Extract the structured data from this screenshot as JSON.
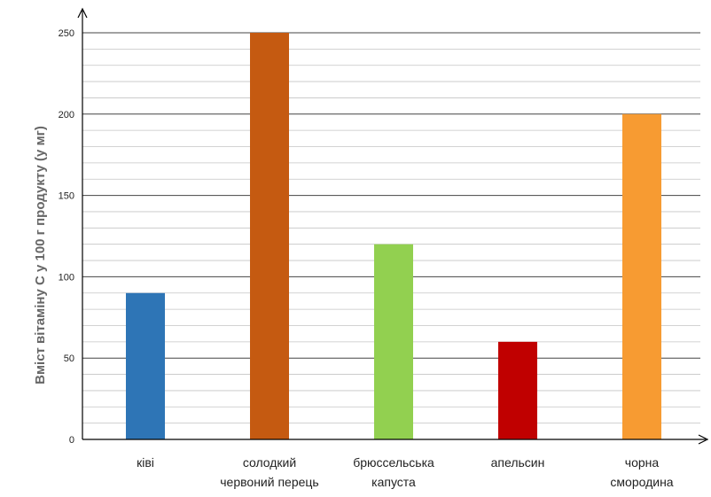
{
  "chart_data": {
    "type": "bar",
    "categories": [
      [
        "ківі"
      ],
      [
        "солодкий",
        "червоний перець"
      ],
      [
        "брюссельська",
        "капуста"
      ],
      [
        "апельсин"
      ],
      [
        "чорна",
        "смородина"
      ]
    ],
    "values": [
      90,
      250,
      120,
      60,
      200
    ],
    "colors": [
      "#2e75b6",
      "#c55a11",
      "#92d050",
      "#c00000",
      "#f79b32"
    ],
    "title": "",
    "xlabel": "",
    "ylabel": "Вміст вітаміну С у 100 г продукту (у мг)",
    "ylim": [
      0,
      250
    ],
    "yticks": [
      0,
      50,
      100,
      150,
      200,
      250
    ],
    "grid": true,
    "legend": "none"
  }
}
